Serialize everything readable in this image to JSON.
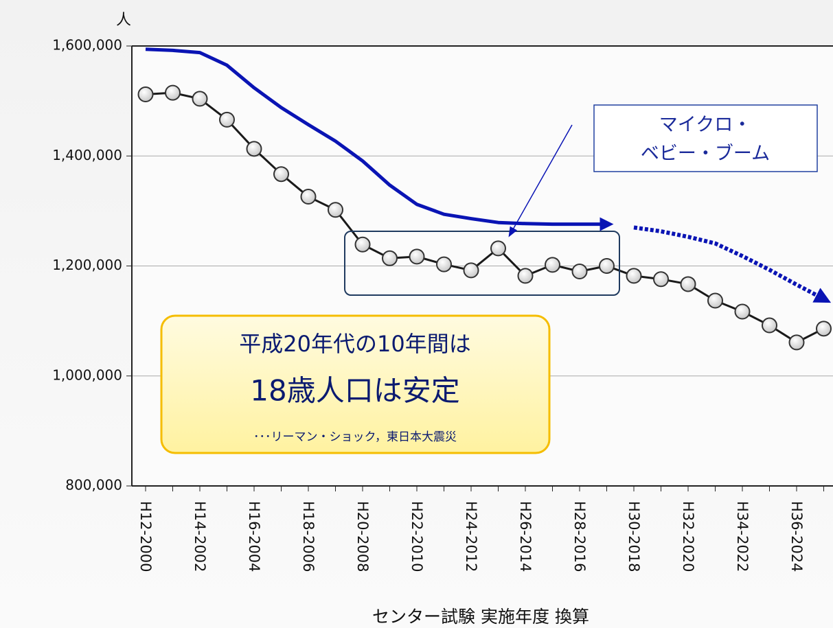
{
  "chart_data": {
    "type": "line",
    "y_axis_label": "人",
    "x_axis_label": "センター試験 実施年度 換算",
    "categories": [
      "H12-2000",
      null,
      "H14-2002",
      null,
      "H16-2004",
      null,
      "H18-2006",
      null,
      "H20-2008",
      null,
      "H22-2010",
      null,
      "H24-2012",
      null,
      "H26-2014",
      null,
      "H28-2016",
      null,
      "H30-2018",
      null,
      "H32-2020",
      null,
      "H34-2022",
      null,
      "H36-2024",
      null
    ],
    "series": [
      {
        "color": "#0a14b4",
        "style": "solid",
        "markers": false,
        "values": [
          1594000,
          1592000,
          1588000,
          1565000,
          1524000,
          1488000,
          1457000,
          1427000,
          1391000,
          1347000,
          1312000,
          1294000,
          1286000,
          1279000,
          1277000,
          1276000,
          1276000,
          1276000,
          null,
          null,
          null,
          null,
          null,
          null,
          null,
          null
        ]
      },
      {
        "color": "#0a14b4",
        "style": "dotted",
        "markers": false,
        "values": [
          null,
          null,
          null,
          null,
          null,
          null,
          null,
          null,
          null,
          null,
          null,
          null,
          null,
          null,
          null,
          null,
          null,
          null,
          1270000,
          1263000,
          1253000,
          1241000,
          1218000,
          1193000,
          1166000,
          1140000
        ]
      },
      {
        "color": "#1a1a1a",
        "style": "solid",
        "markers": true,
        "values": [
          1512000,
          1515000,
          1504000,
          1466000,
          1413000,
          1367000,
          1326000,
          1302000,
          1239000,
          1214000,
          1217000,
          1203000,
          1192000,
          1232000,
          1182000,
          1202000,
          1190000,
          1200000,
          1182000,
          1176000,
          1167000,
          1137000,
          1117000,
          1092000,
          1061000,
          1086000
        ]
      }
    ],
    "ylim": [
      800000,
      1600000
    ],
    "yticks": [
      {
        "value": 800000,
        "label": "800,000"
      },
      {
        "value": 1000000,
        "label": "1,000,000"
      },
      {
        "value": 1200000,
        "label": "1,200,000"
      },
      {
        "value": 1400000,
        "label": "1,400,000"
      },
      {
        "value": 1600000,
        "label": "1,600,000"
      }
    ],
    "grid": true,
    "annotations": {
      "callout": [
        "マイクロ・",
        "ベビー・ブーム"
      ],
      "note": [
        "平成20年代の10年間は",
        "18歳人口は安定",
        "･･･リーマン・ショック，東日本大震災"
      ]
    }
  }
}
